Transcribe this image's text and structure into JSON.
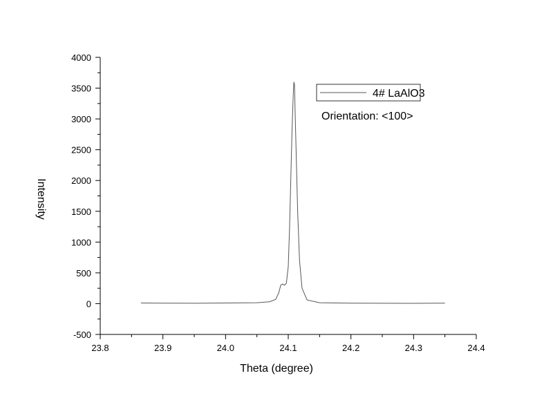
{
  "chart_data": {
    "type": "line",
    "xlabel": "Theta (degree)",
    "ylabel": "Intensity",
    "xlim": [
      23.8,
      24.4
    ],
    "ylim": [
      -500,
      4000
    ],
    "xticks": [
      "23.8",
      "23.9",
      "24.0",
      "24.1",
      "24.2",
      "24.3",
      "24.4"
    ],
    "yticks": [
      "-500",
      "0",
      "500",
      "1000",
      "1500",
      "2000",
      "2500",
      "3000",
      "3500",
      "4000"
    ],
    "grid": false,
    "legend_position": "top-right",
    "series": [
      {
        "name": "4# LaAlO3",
        "color": "#555555",
        "x": [
          23.865,
          23.9,
          23.95,
          24.0,
          24.05,
          24.07,
          24.08,
          24.085,
          24.088,
          24.091,
          24.094,
          24.097,
          24.1,
          24.102,
          24.104,
          24.106,
          24.108,
          24.109,
          24.11,
          24.111,
          24.113,
          24.115,
          24.118,
          24.122,
          24.13,
          24.15,
          24.2,
          24.25,
          24.3,
          24.35
        ],
        "y": [
          10,
          8,
          6,
          10,
          15,
          30,
          70,
          180,
          300,
          320,
          300,
          330,
          600,
          1200,
          2000,
          2800,
          3400,
          3600,
          3550,
          3100,
          2300,
          1500,
          700,
          250,
          60,
          15,
          8,
          6,
          5,
          8
        ]
      }
    ]
  },
  "annotation": "Orientation: <100>"
}
